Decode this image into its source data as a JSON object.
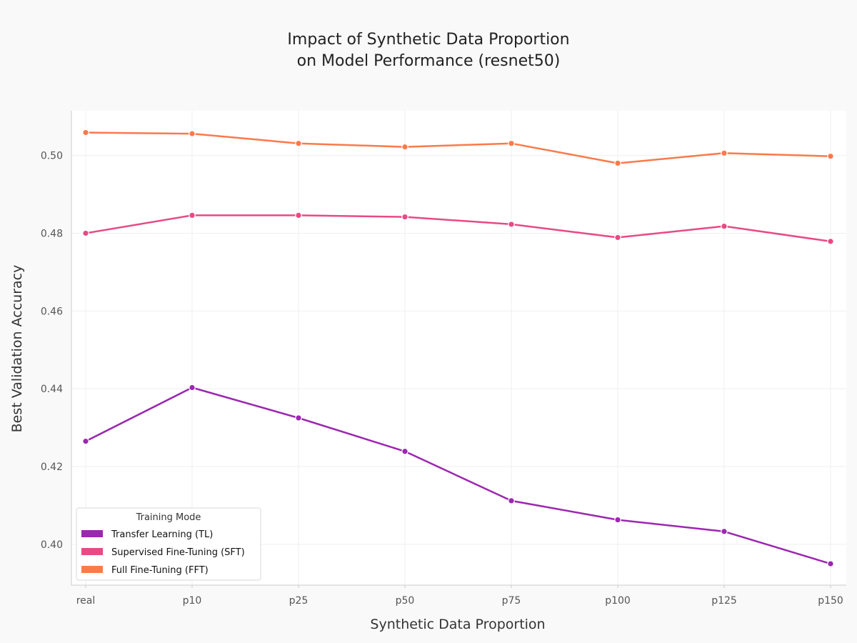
{
  "chart_data": {
    "type": "line",
    "title_lines": [
      "Impact of Synthetic Data Proportion",
      "on Model Performance (resnet50)"
    ],
    "xlabel": "Synthetic Data Proportion",
    "ylabel": "Best Validation Accuracy",
    "categories": [
      "real",
      "p10",
      "p25",
      "p50",
      "p75",
      "p100",
      "p125",
      "p150"
    ],
    "ylim": [
      0.3895,
      0.5115
    ],
    "yticks": [
      0.4,
      0.42,
      0.44,
      0.46,
      0.48,
      0.5
    ],
    "ytick_labels": [
      "0.40",
      "0.42",
      "0.44",
      "0.46",
      "0.48",
      "0.50"
    ],
    "grid": true,
    "legend": {
      "title": "Training Mode",
      "placement": "lower-left"
    },
    "series": [
      {
        "name": "Transfer Learning (TL)",
        "color": "#9c27b0",
        "values": [
          0.4265,
          0.4403,
          0.4325,
          0.4239,
          0.4112,
          0.4063,
          0.4033,
          0.395
        ]
      },
      {
        "name": "Supervised Fine-Tuning (SFT)",
        "color": "#e84a85",
        "values": [
          0.48,
          0.4846,
          0.4846,
          0.4842,
          0.4823,
          0.4789,
          0.4818,
          0.4779
        ]
      },
      {
        "name": "Full Fine-Tuning (FFT)",
        "color": "#fa7a4a",
        "values": [
          0.5059,
          0.5056,
          0.5031,
          0.5022,
          0.5031,
          0.498,
          0.5006,
          0.4998
        ]
      }
    ]
  }
}
